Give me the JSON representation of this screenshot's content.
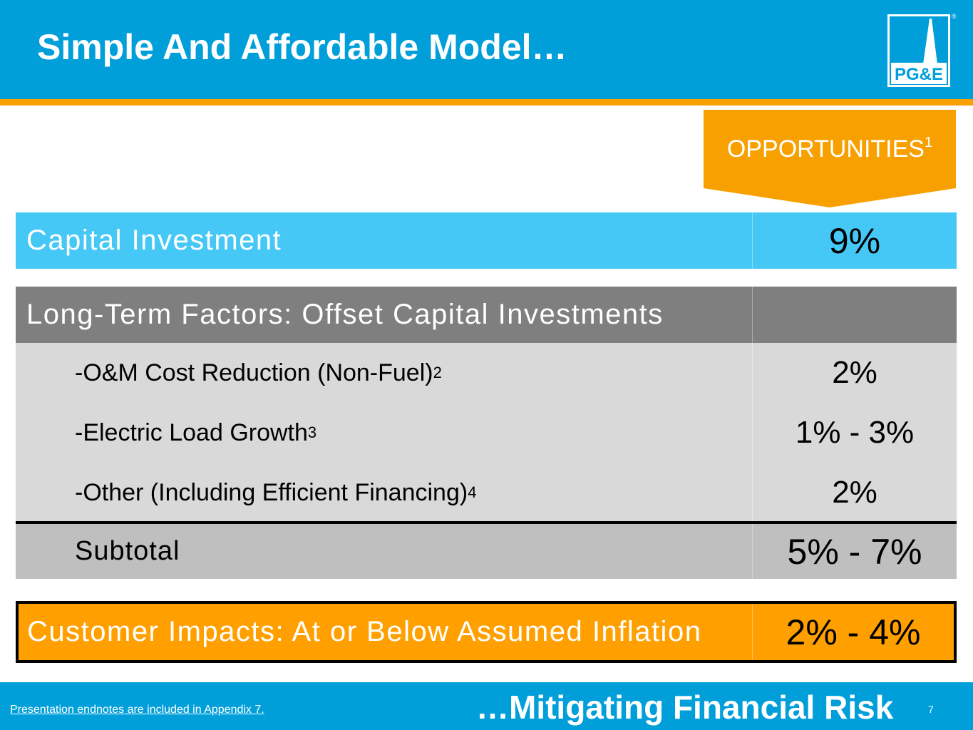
{
  "header": {
    "title": "Simple And Affordable Model…",
    "logo_text": "PG&E",
    "registered_mark": "®"
  },
  "opportunities_tab": {
    "label": "OPPORTUNITIES",
    "footnote": "1"
  },
  "table": {
    "capital_investment": {
      "label": "Capital Investment",
      "value": "9%"
    },
    "long_term_header": {
      "label": "Long-Term Factors: Offset Capital Investments",
      "value": ""
    },
    "factors": [
      {
        "label": "-O&M Cost Reduction (Non-Fuel)",
        "footnote": "2",
        "value": "2%"
      },
      {
        "label": "-Electric Load Growth",
        "footnote": "3",
        "value": "1% - 3%"
      },
      {
        "label": "-Other (Including Efficient Financing)",
        "footnote": "4",
        "value": "2%"
      }
    ],
    "subtotal": {
      "label": "Subtotal",
      "value": "5% - 7%"
    },
    "customer_impacts": {
      "label": "Customer Impacts: At or Below Assumed Inflation",
      "value": "2% - 4%"
    }
  },
  "footer": {
    "endnote_link": "Presentation endnotes are included in Appendix 7.",
    "tagline": "…Mitigating Financial Risk",
    "page_number": "7"
  },
  "colors": {
    "brand_blue": "#009fda",
    "brand_orange": "#f8a000",
    "light_blue_row": "#45c8f5",
    "gray_header": "#7f7f7f",
    "light_gray": "#d9d9d9",
    "subtotal_gray": "#bfbfbf",
    "customer_orange": "#ffa000"
  }
}
